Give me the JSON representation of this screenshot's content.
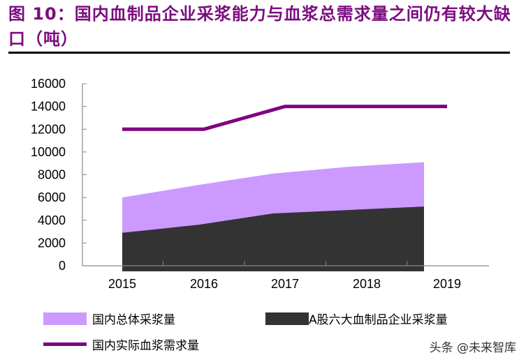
{
  "title": "图 10：国内血制品企业采浆能力与血浆总需求量之间仍有较大缺口（吨）",
  "watermark": "头条 @未来智库",
  "colors": {
    "total": "#cc99ff",
    "a_share": "#333333",
    "demand": "#800080",
    "title": "#7b0c7f"
  },
  "chart_data": {
    "type": "area",
    "categories": [
      "2015",
      "2016",
      "2017",
      "2018",
      "2019"
    ],
    "ylim": [
      0,
      16000
    ],
    "yticks": [
      "0",
      "2000",
      "4000",
      "6000",
      "8000",
      "10000",
      "12000",
      "14000",
      "16000"
    ],
    "series": [
      {
        "name": "国内总体采浆量",
        "type": "area",
        "values": [
          6000,
          7100,
          8100,
          8700,
          9100
        ]
      },
      {
        "name": "A股六大血制品企业采浆量",
        "type": "area",
        "values": [
          2900,
          3600,
          4600,
          4900,
          5200
        ]
      },
      {
        "name": "国内实际血浆需求量",
        "type": "line",
        "values": [
          12000,
          12000,
          14000,
          14000,
          14000
        ]
      }
    ],
    "grid": false,
    "legend": "bottom"
  }
}
